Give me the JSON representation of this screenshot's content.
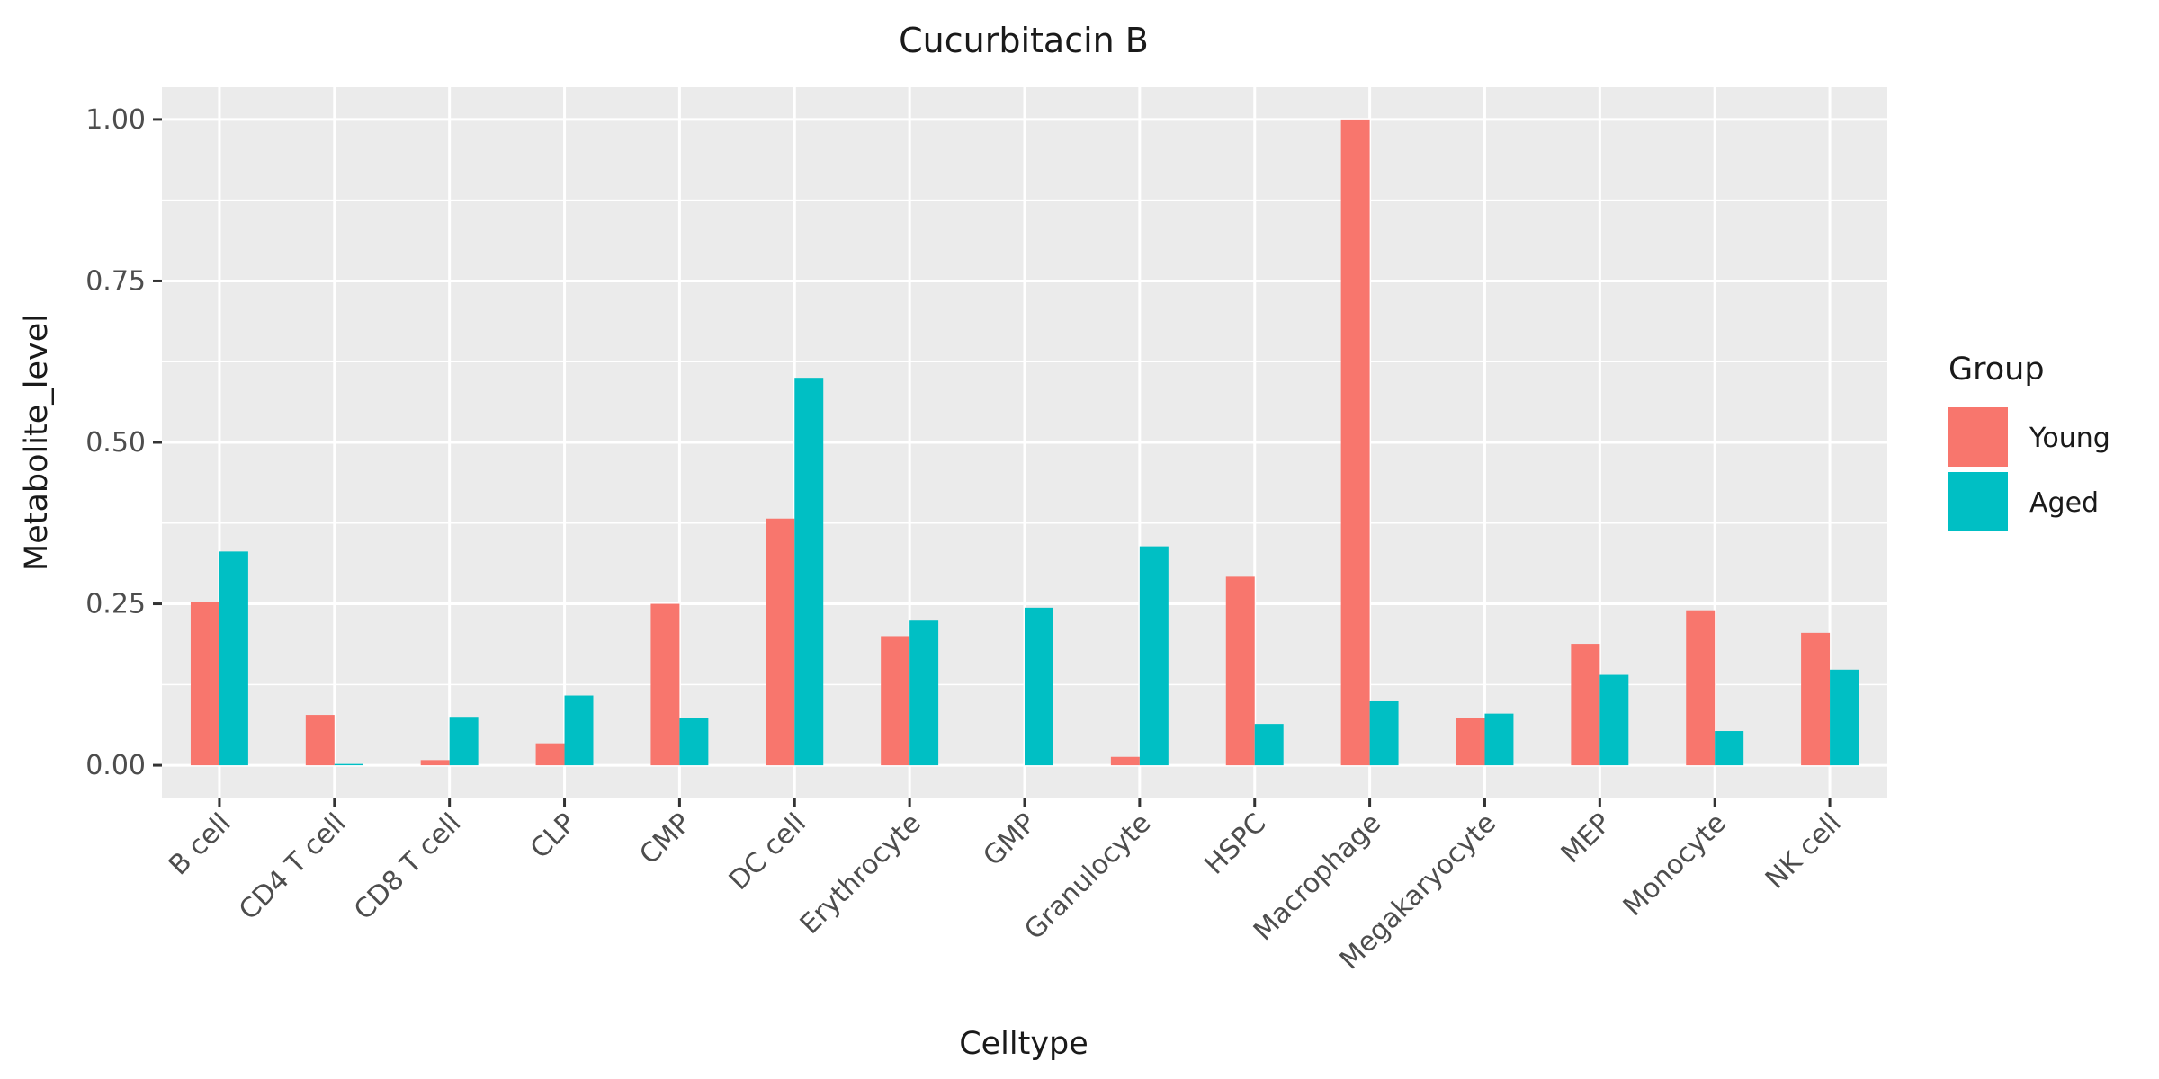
{
  "chart_data": {
    "type": "bar",
    "title": "Cucurbitacin B",
    "xlabel": "Celltype",
    "ylabel": "Metabolite_level",
    "ylim": [
      -0.05,
      1.05
    ],
    "yticks": [
      0,
      0.25,
      0.5,
      0.75,
      1.0
    ],
    "ytick_labels": [
      "0.00",
      "0.25",
      "0.50",
      "0.75",
      "1.00"
    ],
    "grid": true,
    "legend": {
      "title": "Group",
      "position": "right"
    },
    "categories": [
      "B cell",
      "CD4 T cell",
      "CD8 T cell",
      "CLP",
      "CMP",
      "DC cell",
      "Erythrocyte",
      "GMP",
      "Granulocyte",
      "HSPC",
      "Macrophage",
      "Megakaryocyte",
      "MEP",
      "Monocyte",
      "NK cell"
    ],
    "series": [
      {
        "name": "Young",
        "color": "#F8766D",
        "values": [
          0.253,
          0.078,
          0.008,
          0.034,
          0.25,
          0.382,
          0.2,
          0.0,
          0.013,
          0.292,
          1.0,
          0.073,
          0.188,
          0.24,
          0.205
        ]
      },
      {
        "name": "Aged",
        "color": "#00BFC4",
        "values": [
          0.331,
          0.002,
          0.075,
          0.108,
          0.073,
          0.6,
          0.224,
          0.244,
          0.339,
          0.064,
          0.099,
          0.08,
          0.14,
          0.053,
          0.148
        ]
      }
    ]
  }
}
